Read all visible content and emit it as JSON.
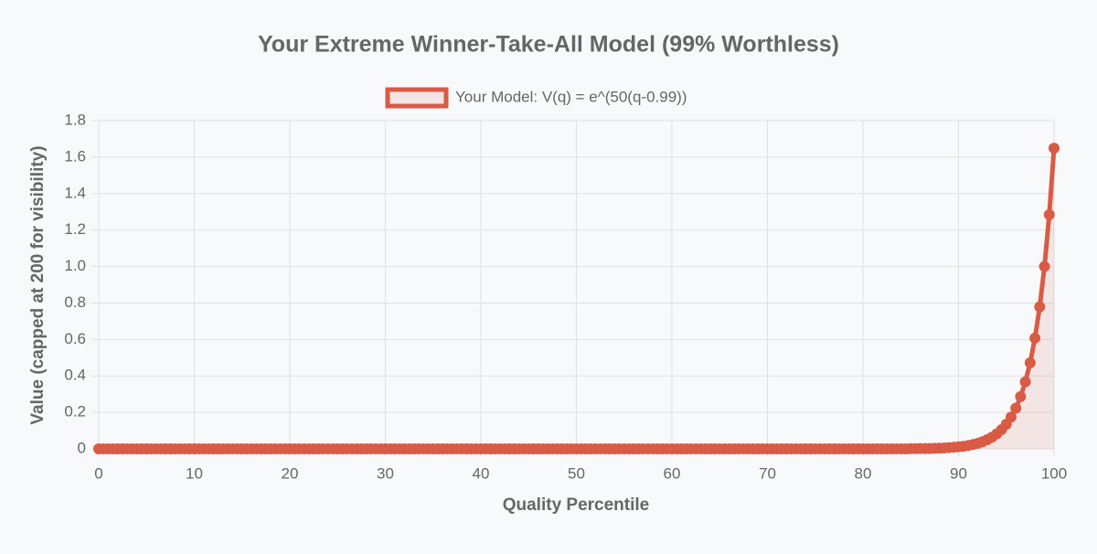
{
  "chart_data": {
    "type": "line",
    "title": "Your Extreme Winner-Take-All Model (99% Worthless)",
    "x_label": "Quality Percentile",
    "y_label": "Value (capped at 200 for visibility)",
    "x": [
      0,
      0.5,
      1,
      1.5,
      2,
      2.5,
      3,
      3.5,
      4,
      4.5,
      5,
      5.5,
      6,
      6.5,
      7,
      7.5,
      8,
      8.5,
      9,
      9.5,
      10,
      10.5,
      11,
      11.5,
      12,
      12.5,
      13,
      13.5,
      14,
      14.5,
      15,
      15.5,
      16,
      16.5,
      17,
      17.5,
      18,
      18.5,
      19,
      19.5,
      20,
      20.5,
      21,
      21.5,
      22,
      22.5,
      23,
      23.5,
      24,
      24.5,
      25,
      25.5,
      26,
      26.5,
      27,
      27.5,
      28,
      28.5,
      29,
      29.5,
      30,
      30.5,
      31,
      31.5,
      32,
      32.5,
      33,
      33.5,
      34,
      34.5,
      35,
      35.5,
      36,
      36.5,
      37,
      37.5,
      38,
      38.5,
      39,
      39.5,
      40,
      40.5,
      41,
      41.5,
      42,
      42.5,
      43,
      43.5,
      44,
      44.5,
      45,
      45.5,
      46,
      46.5,
      47,
      47.5,
      48,
      48.5,
      49,
      49.5,
      50,
      50.5,
      51,
      51.5,
      52,
      52.5,
      53,
      53.5,
      54,
      54.5,
      55,
      55.5,
      56,
      56.5,
      57,
      57.5,
      58,
      58.5,
      59,
      59.5,
      60,
      60.5,
      61,
      61.5,
      62,
      62.5,
      63,
      63.5,
      64,
      64.5,
      65,
      65.5,
      66,
      66.5,
      67,
      67.5,
      68,
      68.5,
      69,
      69.5,
      70,
      70.5,
      71,
      71.5,
      72,
      72.5,
      73,
      73.5,
      74,
      74.5,
      75,
      75.5,
      76,
      76.5,
      77,
      77.5,
      78,
      78.5,
      79,
      79.5,
      80,
      80.5,
      81,
      81.5,
      82,
      82.5,
      83,
      83.5,
      84,
      84.5,
      85,
      85.5,
      86,
      86.5,
      87,
      87.5,
      88,
      88.5,
      89,
      89.5,
      90,
      90.5,
      91,
      91.5,
      92,
      92.5,
      93,
      93.5,
      94,
      94.5,
      95,
      95.5,
      96,
      96.5,
      97,
      97.5,
      98,
      98.5,
      99,
      99.5,
      100
    ],
    "series": [
      {
        "name": "Your Model: V(q) = e^(50(q-0.99))",
        "color": "#d95b45",
        "fill": true,
        "values": [
          0,
          0,
          0,
          0,
          0,
          0,
          0,
          0,
          0,
          0,
          0,
          0,
          0,
          0,
          0,
          0,
          0,
          0,
          0,
          0,
          0,
          0,
          0,
          0,
          0,
          0,
          0,
          0,
          0,
          0,
          0,
          0,
          0,
          0,
          0,
          0,
          0,
          0,
          0,
          0,
          0,
          0,
          0,
          0,
          0,
          0,
          0,
          0,
          0,
          0,
          0,
          0,
          0,
          0,
          0,
          0,
          0,
          0,
          0,
          0,
          0,
          0,
          0,
          0,
          0,
          0,
          0,
          0,
          0,
          0,
          0,
          0,
          0,
          0,
          0,
          0,
          0,
          0,
          0,
          0,
          0,
          0,
          0,
          0,
          0,
          0,
          0,
          0,
          0,
          0,
          0,
          0,
          0,
          0,
          0,
          0,
          0,
          0,
          0,
          0,
          0,
          0,
          0,
          0,
          0,
          0,
          0,
          0,
          0,
          0,
          0,
          0,
          0,
          0,
          0,
          0,
          0,
          0,
          0,
          0,
          0,
          0,
          0,
          0,
          0,
          0,
          0,
          0,
          0,
          0,
          0,
          0,
          0,
          0,
          0,
          0,
          0,
          0,
          0,
          0,
          0,
          0,
          0,
          0,
          0,
          0,
          0,
          0,
          0,
          0,
          0,
          0,
          0,
          0,
          0,
          0,
          0,
          0,
          0,
          0,
          0,
          0,
          0,
          0,
          0,
          0,
          0,
          0,
          0,
          0,
          0.001,
          0.001,
          0.002,
          0.002,
          0.002,
          0.003,
          0.004,
          0.005,
          0.007,
          0.009,
          0.011,
          0.014,
          0.018,
          0.024,
          0.03,
          0.039,
          0.05,
          0.064,
          0.082,
          0.105,
          0.135,
          0.174,
          0.223,
          0.287,
          0.368,
          0.472,
          0.607,
          0.779,
          1,
          1.284,
          1.649
        ]
      }
    ],
    "xlim": [
      0,
      100
    ],
    "xticks": [
      0,
      10,
      20,
      30,
      40,
      50,
      60,
      70,
      80,
      90,
      100
    ],
    "ylim": [
      0,
      1.8
    ],
    "yticks": [
      0,
      0.2,
      0.4,
      0.6,
      0.8,
      {
        "value": 1,
        "label": "1.0"
      },
      1.2,
      1.4,
      1.6,
      1.8
    ],
    "grid": true,
    "legend": "top"
  }
}
